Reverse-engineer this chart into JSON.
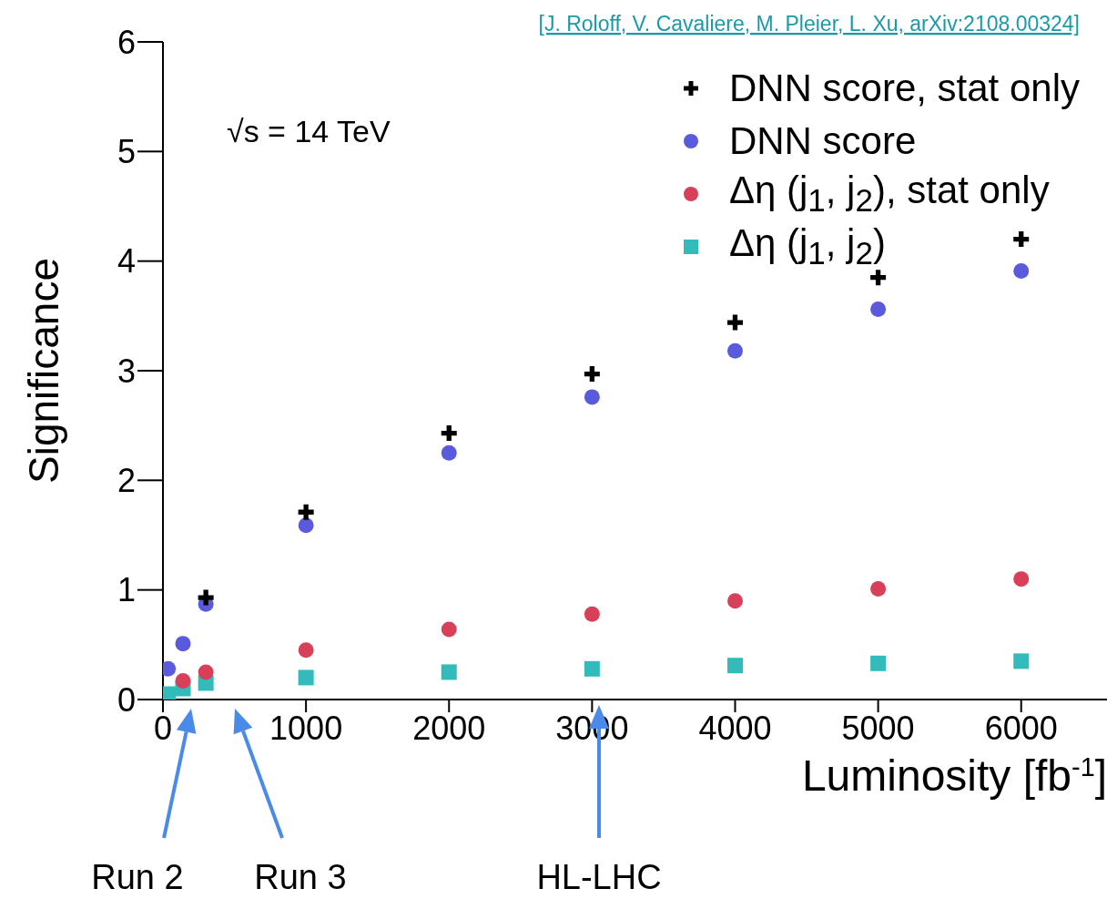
{
  "chart_data": {
    "type": "scatter",
    "xlabel": "Luminosity [fb$^{-1}$]",
    "ylabel": "Significance",
    "x": [
      36,
      140,
      300,
      1000,
      2000,
      3000,
      4000,
      5000,
      6000
    ],
    "series": [
      {
        "name": "DNN score, stat only",
        "color": "#000000",
        "marker": "cross",
        "values": [
          null,
          null,
          0.93,
          1.71,
          2.43,
          2.97,
          3.44,
          3.85,
          4.2
        ]
      },
      {
        "name": "DNN score",
        "color": "#5a5adc",
        "marker": "circle",
        "values": [
          0.28,
          0.51,
          0.87,
          1.59,
          2.25,
          2.76,
          3.18,
          3.56,
          3.91
        ]
      },
      {
        "name": "Δη (j$_{1}$, j$_{2}$), stat only",
        "color": "#d8405a",
        "marker": "circle",
        "values": [
          null,
          0.17,
          0.25,
          0.45,
          0.64,
          0.78,
          0.9,
          1.01,
          1.1
        ]
      },
      {
        "name": "Δη (j$_{1}$, j$_{2}$)",
        "color": "#33bbbb",
        "marker": "square",
        "values": [
          0.05,
          0.1,
          0.15,
          0.2,
          0.25,
          0.28,
          0.31,
          0.33,
          0.35
        ]
      }
    ],
    "xlim": [
      0,
      6600
    ],
    "xticks": [
      0,
      1000,
      2000,
      3000,
      4000,
      5000,
      6000
    ],
    "ylim": [
      0,
      6
    ],
    "yticks": [
      0,
      1,
      2,
      3,
      4,
      5,
      6
    ],
    "grid": false,
    "legend": "top right",
    "annotations": [
      "Run 2",
      "Run 3",
      "HL-LHC",
      "√s = 14 TeV",
      "[J. Roloff, V. Cavaliere, M. Pleier, L. Xu, arXiv:2108.00324]"
    ]
  }
}
